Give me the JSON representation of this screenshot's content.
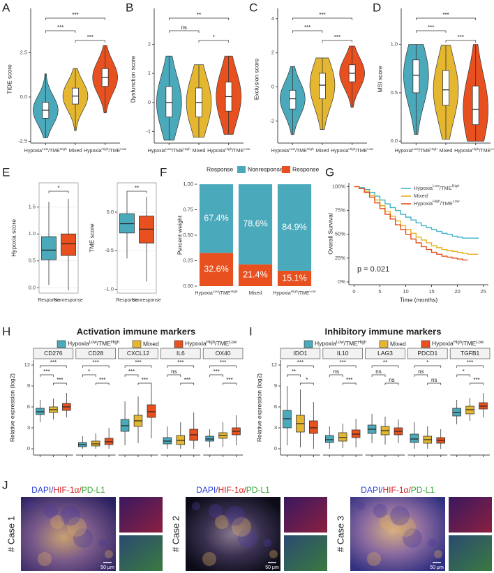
{
  "chart_data": [
    {
      "type": "violin",
      "panel": "A",
      "ylabel": "TIDE score",
      "categories": [
        "HypoxiaLow/TMEHigh",
        "Mixed",
        "HypoxiaHigh/TMELow"
      ],
      "colors": [
        "#4aa9bb",
        "#e5b731",
        "#e8511f"
      ],
      "stats": [
        [
          -2.3,
          -1.2,
          -0.75,
          -0.3,
          1.3
        ],
        [
          -1.9,
          -0.4,
          0.05,
          0.5,
          1.6
        ],
        [
          -0.9,
          0.6,
          1.1,
          1.6,
          2.9
        ]
      ],
      "significance": [
        "***",
        "***",
        "***"
      ],
      "ylim": [
        -2.6,
        4.6
      ],
      "yticks": [
        -2.5,
        {
          "value": 0,
          "label": "0.0"
        },
        2.5
      ]
    },
    {
      "type": "violin",
      "panel": "B",
      "ylabel": "Dysfunction score",
      "categories": [
        "HypoxiaLow/TMEHigh",
        "Mixed",
        "HypoxiaHigh/TMELow"
      ],
      "colors": [
        "#4aa9bb",
        "#e5b731",
        "#e8511f"
      ],
      "stats": [
        [
          -1.3,
          -0.5,
          0,
          0.55,
          1.6
        ],
        [
          -1.2,
          -0.5,
          0,
          0.5,
          1.3
        ],
        [
          -1.1,
          -0.3,
          0.2,
          0.7,
          1.6
        ]
      ],
      "significance": [
        "ns",
        "*",
        "**"
      ],
      "ylim": [
        -1.4,
        3.0
      ],
      "yticks": [
        -1,
        0,
        1,
        2
      ]
    },
    {
      "type": "violin",
      "panel": "C",
      "ylabel": "Exclusion score",
      "categories": [
        "HypoxiaLow/TMEHigh",
        "Mixed",
        "HypoxiaHigh/TMELow"
      ],
      "colors": [
        "#4aa9bb",
        "#e5b731",
        "#e8511f"
      ],
      "stats": [
        [
          -2.8,
          -1.3,
          -0.7,
          -0.2,
          1.2
        ],
        [
          -2.5,
          -0.7,
          0.1,
          0.8,
          1.7
        ],
        [
          -1.2,
          0.3,
          0.8,
          1.3,
          2.4
        ]
      ],
      "significance": [
        "***",
        "***",
        "***"
      ],
      "ylim": [
        -3.3,
        4.2
      ],
      "yticks": [
        -2,
        0,
        2,
        4
      ]
    },
    {
      "type": "violin",
      "panel": "D",
      "ylabel": "MSI score",
      "categories": [
        "HypoxiaLow/TMEHigh",
        "Mixed",
        "HypoxiaHigh/TMELow"
      ],
      "colors": [
        "#4aa9bb",
        "#e5b731",
        "#e8511f"
      ],
      "stats": [
        [
          0.07,
          0.5,
          0.68,
          0.84,
          1.0
        ],
        [
          0.02,
          0.37,
          0.53,
          0.73,
          0.99
        ],
        [
          0.0,
          0.17,
          0.33,
          0.57,
          1.0
        ]
      ],
      "significance": [
        "***",
        "***",
        "***"
      ],
      "ylim": [
        -0.02,
        1.3
      ],
      "yticks": [
        {
          "value": 0,
          "label": "0.0"
        },
        0.5,
        {
          "value": 1,
          "label": "1.0"
        }
      ]
    },
    {
      "type": "box_pair",
      "panel": "E",
      "plots": [
        {
          "ylabel": "Hypoxia score",
          "categories": [
            "Response",
            "Nonresponse"
          ],
          "colors": [
            "#4aa9bb",
            "#e8511f"
          ],
          "stats": [
            [
              0.05,
              0.52,
              0.7,
              0.95,
              1.6
            ],
            [
              -0.05,
              0.6,
              0.82,
              1.0,
              1.65
            ]
          ],
          "significance": [
            "*"
          ],
          "ylim": [
            -0.1,
            1.95
          ],
          "yticks": [
            {
              "value": 0,
              "label": "0.0"
            },
            0.5,
            {
              "value": 1,
              "label": "1.0"
            },
            1.5
          ]
        },
        {
          "ylabel": "TME score",
          "categories": [
            "Response",
            "Nonresponse"
          ],
          "colors": [
            "#4aa9bb",
            "#e8511f"
          ],
          "stats": [
            [
              -0.6,
              -0.27,
              -0.15,
              -0.02,
              0.25
            ],
            [
              -0.9,
              -0.4,
              -0.22,
              -0.05,
              0.2
            ]
          ],
          "significance": [
            "**"
          ],
          "ylim": [
            -1.05,
            0.38
          ],
          "yticks": [
            {
              "value": -1,
              "label": "-1.0"
            },
            -0.5,
            {
              "value": 0,
              "label": "0.0"
            }
          ]
        }
      ]
    },
    {
      "type": "stacked_bar",
      "panel": "F",
      "ylabel": "Percent weight",
      "legend_title": "Response",
      "categories": [
        "HypoxiaLow/TMEHigh",
        "Mixed",
        "HypoxiaHigh/TMELow"
      ],
      "series": [
        {
          "name": "Nonresponse",
          "color": "#4aa9bb",
          "values": [
            0.674,
            0.786,
            0.849
          ],
          "value_labels": [
            "67.4%",
            "78.6%",
            "84.9%"
          ]
        },
        {
          "name": "Response",
          "color": "#e8511f",
          "values": [
            0.326,
            0.214,
            0.151
          ],
          "value_labels": [
            "32.6%",
            "21.4%",
            "15.1%"
          ]
        }
      ],
      "ylim": [
        0,
        1
      ],
      "yticks": [
        {
          "value": 0,
          "label": "0.00"
        },
        {
          "value": 0.25,
          "label": "0.25"
        },
        {
          "value": 0.5,
          "label": "0.50"
        },
        {
          "value": 0.75,
          "label": "0.75"
        },
        {
          "value": 1,
          "label": "1.00"
        }
      ]
    },
    {
      "type": "line",
      "step": true,
      "panel": "G",
      "ylabel": "Overall Survival",
      "xlabel": "Time (months)",
      "annotation": "p = 0.021",
      "legend": "top-right",
      "x": [
        0,
        1,
        2,
        3,
        4,
        5,
        6,
        7,
        8,
        9,
        10,
        11,
        12,
        13,
        14,
        15,
        16,
        17,
        18,
        19,
        20,
        21,
        22,
        23,
        24
      ],
      "series": [
        {
          "name": "HypoxiaLow/TMEHigh",
          "color": "#3fb3c6",
          "values": [
            100,
            99,
            97,
            94,
            90,
            86,
            82,
            78,
            75,
            71,
            68,
            65,
            62,
            59,
            57,
            55,
            53,
            51,
            50,
            48,
            47,
            46,
            46,
            46,
            45
          ]
        },
        {
          "name": "Mixed",
          "color": "#e6b020",
          "values": [
            100,
            98,
            95,
            91,
            86,
            80,
            74,
            69,
            64,
            59,
            55,
            51,
            47,
            44,
            41,
            38,
            36,
            34,
            33,
            32,
            31,
            30,
            29,
            29,
            29
          ]
        },
        {
          "name": "HypoxiaHigh/TMELow",
          "color": "#e54d1a",
          "values": [
            100,
            98,
            94,
            89,
            83,
            77,
            71,
            66,
            60,
            55,
            50,
            45,
            41,
            37,
            34,
            31,
            29,
            27,
            26,
            25,
            24,
            23,
            23,
            null,
            null
          ]
        }
      ],
      "xlim": [
        -1,
        26
      ],
      "xticks": [
        0,
        5,
        10,
        15,
        20,
        25
      ],
      "ylim": [
        -3,
        104
      ],
      "yticks": [
        {
          "value": 0,
          "label": "0%"
        },
        {
          "value": 25,
          "label": "25%"
        },
        {
          "value": 50,
          "label": "50%"
        },
        {
          "value": 75,
          "label": "75%"
        },
        {
          "value": 100,
          "label": "100%"
        }
      ]
    },
    {
      "type": "faceted_box",
      "panel": "H",
      "title": "Activation immune markers",
      "ylabel": "Relative expression (log2)",
      "series": [
        {
          "name": "HypoxiaLow/TMEHigh",
          "color": "#4aa9bb"
        },
        {
          "name": "Mixed",
          "color": "#e5b731"
        },
        {
          "name": "HypoxiaHigh/TMELow",
          "color": "#e8511f"
        }
      ],
      "facets": [
        {
          "name": "CD276",
          "stats": [
            [
              3.8,
              4.9,
              5.3,
              5.8,
              7.0
            ],
            [
              4.2,
              5.2,
              5.6,
              6.0,
              7.2
            ],
            [
              4.5,
              5.5,
              6.0,
              6.5,
              8.0
            ]
          ],
          "significance": [
            "***",
            "***",
            "***"
          ]
        },
        {
          "name": "CD28",
          "stats": [
            [
              0,
              0.3,
              0.6,
              0.9,
              1.8
            ],
            [
              0,
              0.4,
              0.7,
              1.1,
              2.2
            ],
            [
              0,
              0.6,
              1.0,
              1.5,
              3.0
            ]
          ],
          "significance": [
            "*",
            "***",
            "***"
          ]
        },
        {
          "name": "CXCL12",
          "stats": [
            [
              0.5,
              2.5,
              3.3,
              4.2,
              6.8
            ],
            [
              0.8,
              3.2,
              4.0,
              4.8,
              7.5
            ],
            [
              1.5,
              4.5,
              5.3,
              6.3,
              9.3
            ]
          ],
          "significance": [
            "***",
            "***",
            "***"
          ]
        },
        {
          "name": "IL6",
          "stats": [
            [
              0,
              0.7,
              1.1,
              1.6,
              3.2
            ],
            [
              0,
              0.6,
              1.2,
              1.9,
              3.8
            ],
            [
              0,
              1.2,
              2.0,
              2.8,
              5.2
            ]
          ],
          "significance": [
            "ns",
            "***",
            "***"
          ]
        },
        {
          "name": "OX40",
          "stats": [
            [
              0.2,
              1.1,
              1.4,
              1.8,
              2.8
            ],
            [
              0.3,
              1.5,
              1.9,
              2.3,
              3.8
            ],
            [
              0.5,
              2.0,
              2.5,
              3.0,
              4.8
            ]
          ],
          "significance": [
            "***",
            "***",
            "***"
          ]
        }
      ],
      "ylim": [
        -0.9,
        12.7
      ],
      "yticks": [
        0,
        3,
        6,
        9,
        12
      ]
    },
    {
      "type": "faceted_box",
      "panel": "I",
      "title": "Inhibitory immune markers",
      "ylabel": "Relative expression (log2)",
      "series": [
        {
          "name": "HypoxiaLow/TMEHigh",
          "color": "#4aa9bb"
        },
        {
          "name": "Mixed",
          "color": "#e5b731"
        },
        {
          "name": "HypoxiaHigh/TMELow",
          "color": "#e8511f"
        }
      ],
      "facets": [
        {
          "name": "IDO1",
          "stats": [
            [
              0.5,
              3.0,
              4.3,
              5.5,
              9.0
            ],
            [
              0.2,
              2.4,
              3.6,
              4.8,
              8.5
            ],
            [
              0,
              2.2,
              3.0,
              4.0,
              6.7
            ]
          ],
          "significance": [
            "**",
            "*",
            "***"
          ]
        },
        {
          "name": "IL10",
          "stats": [
            [
              0,
              0.9,
              1.3,
              1.9,
              3.2
            ],
            [
              0.1,
              1.1,
              1.6,
              2.3,
              3.6
            ],
            [
              0.2,
              1.6,
              2.1,
              2.7,
              4.3
            ]
          ],
          "significance": [
            "ns",
            "***",
            "***"
          ]
        },
        {
          "name": "LAG3",
          "stats": [
            [
              0.8,
              2.2,
              2.8,
              3.4,
              5.0
            ],
            [
              0.6,
              2.0,
              2.6,
              3.2,
              4.6
            ],
            [
              0.8,
              2.0,
              2.5,
              3.0,
              4.2
            ]
          ],
          "significance": [
            "ns",
            "ns",
            "**"
          ]
        },
        {
          "name": "PDCD1",
          "stats": [
            [
              0,
              0.9,
              1.4,
              2.1,
              3.8
            ],
            [
              0,
              0.8,
              1.3,
              1.8,
              3.2
            ],
            [
              0,
              0.8,
              1.2,
              1.6,
              2.8
            ]
          ],
          "significance": [
            "ns",
            "ns",
            "*"
          ]
        },
        {
          "name": "TGFB1",
          "stats": [
            [
              3.5,
              4.7,
              5.2,
              5.8,
              7.0
            ],
            [
              4.0,
              5.0,
              5.6,
              6.1,
              7.3
            ],
            [
              4.5,
              5.7,
              6.1,
              6.6,
              8.0
            ]
          ],
          "significance": [
            "*",
            "***",
            "***"
          ]
        }
      ],
      "ylim": [
        -0.9,
        12.7
      ],
      "yticks": [
        0,
        3,
        6,
        9,
        12
      ]
    }
  ],
  "panel_j": {
    "label": "J",
    "stain": [
      "DAPI/",
      "HIF-1α/",
      "PD-L1"
    ],
    "stain_colors": [
      "#2a3fd8",
      "#d42020",
      "#37a838"
    ],
    "cases": [
      "# Case 1",
      "# Case 2",
      "# Case 3"
    ],
    "scale_bars": [
      "50 μm",
      "50 μm",
      "50 μm"
    ]
  }
}
